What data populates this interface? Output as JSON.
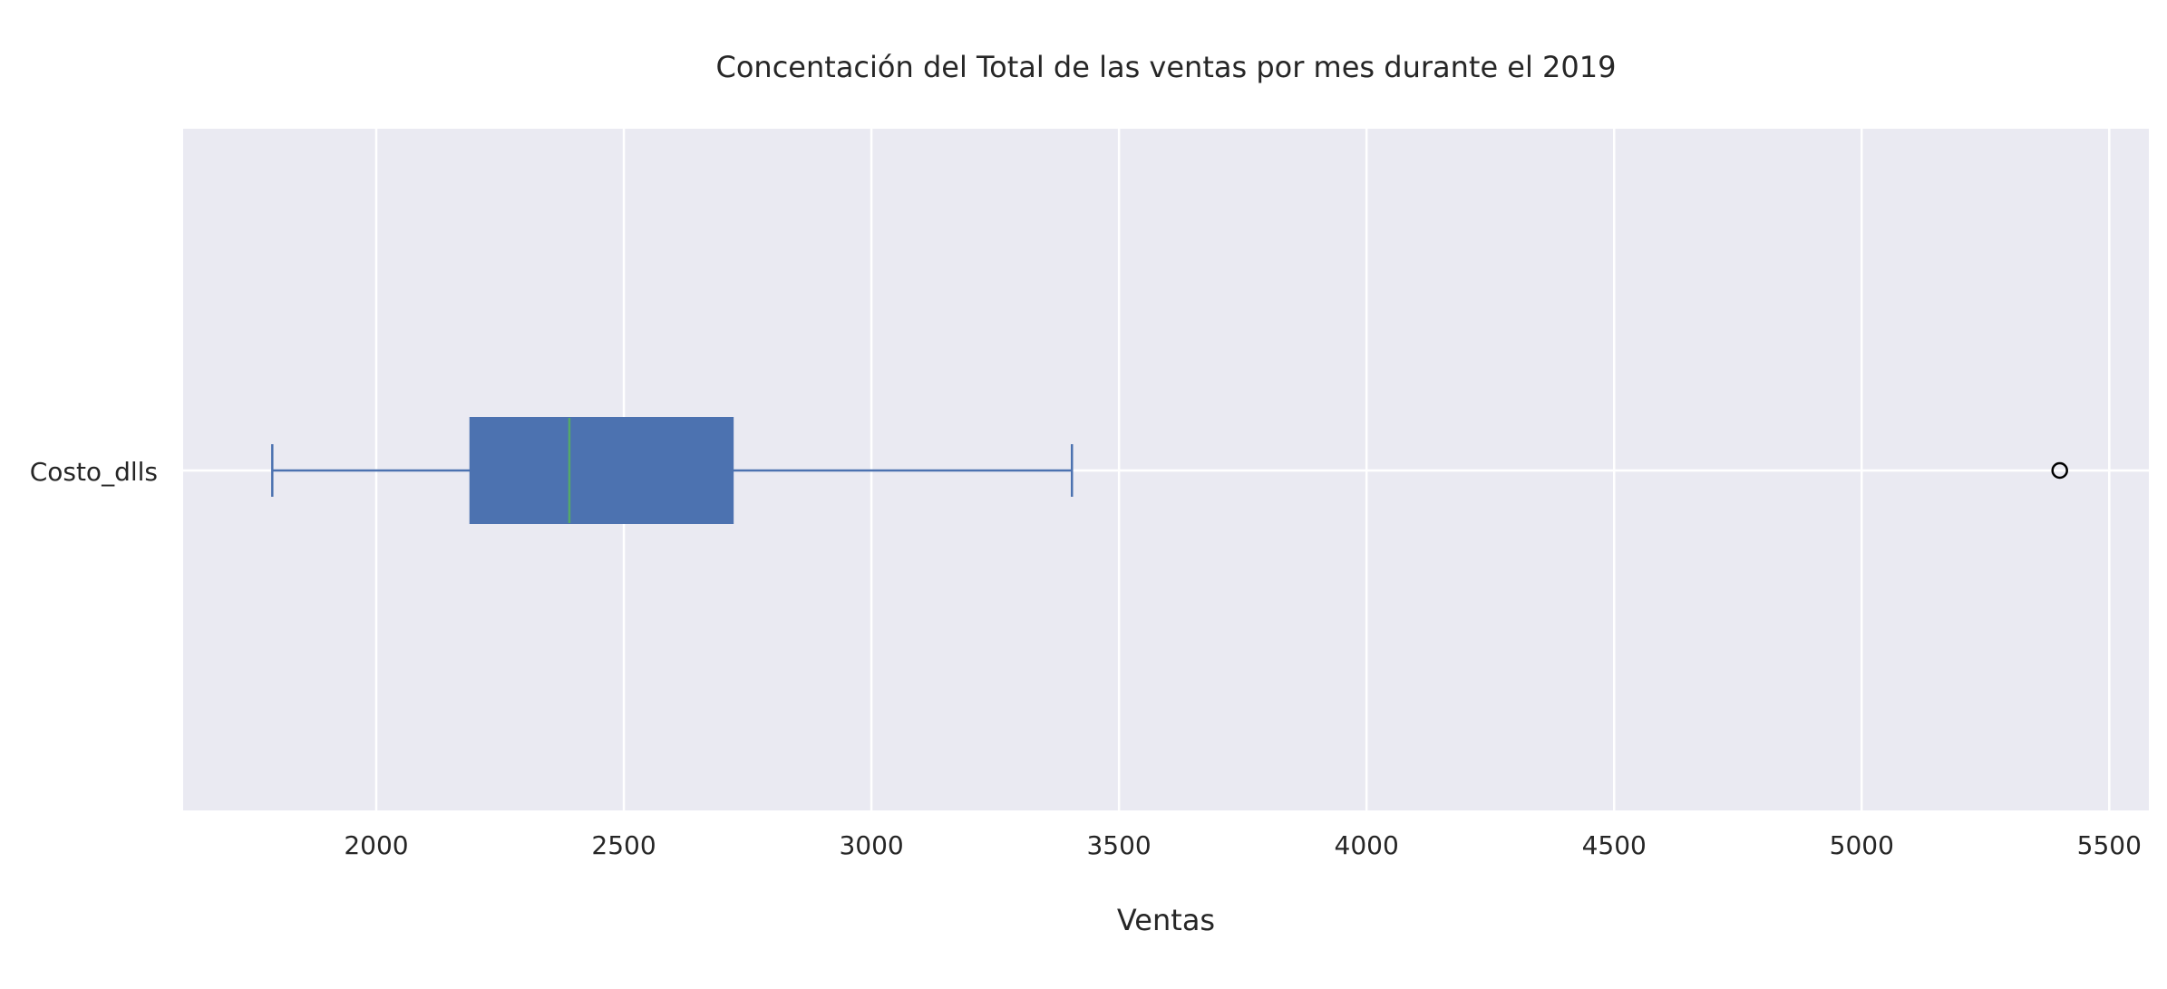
{
  "chart_data": {
    "type": "boxplot",
    "orientation": "horizontal",
    "title": "Concentación del Total de las ventas por mes durante el 2019",
    "xlabel": "Ventas",
    "ylabel": "",
    "xlim": [
      1610,
      5580
    ],
    "xticks": [
      2000,
      2500,
      3000,
      3500,
      4000,
      4500,
      5000,
      5500
    ],
    "grid": true,
    "categories": [
      "Costo_dlls"
    ],
    "series": [
      {
        "name": "Costo_dlls",
        "whisker_low": 1790,
        "q1": 2190,
        "median": 2390,
        "q3": 2720,
        "whisker_high": 3405,
        "outliers": [
          5400
        ]
      }
    ],
    "colors": {
      "plot_background": "#eaeaf2",
      "grid": "#ffffff",
      "box": "#4c72b0",
      "median": "#55a868",
      "outlier_edge": "#000000"
    }
  }
}
